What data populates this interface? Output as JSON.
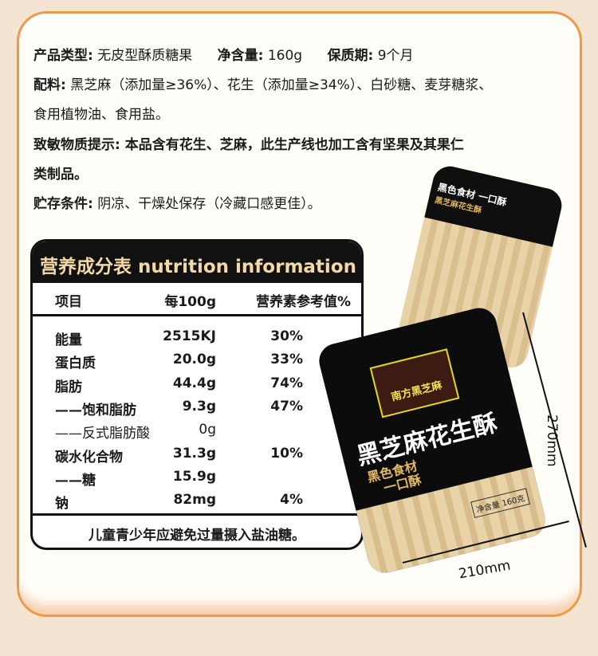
{
  "product_info": {
    "type_label": "产品类型:",
    "type_value": "无皮型酥质糖果",
    "net_label": "净含量:",
    "net_value": "160g",
    "shelf_label": "保质期:",
    "shelf_value": "9个月",
    "ingredients_label": "配料:",
    "ingredients_line1": "黑芝麻（添加量≥36%）、花生（添加量≥34%）、白砂糖、麦芽糖浆、",
    "ingredients_line2": "食用植物油、食用盐。",
    "allergen_label": "致敏物质提示:",
    "allergen_line1": "本品含有花生、芝麻，此生产线也加工含有坚果及其果仁",
    "allergen_line2": "类制品。",
    "storage_label": "贮存条件:",
    "storage_value": "阴凉、干燥处保存（冷藏口感更佳）。"
  },
  "nutrition": {
    "title": "营养成分表 nutrition information",
    "headers": [
      "项目",
      "每100g",
      "营养素参考值%"
    ],
    "rows": [
      {
        "item": "能量",
        "value": "2515KJ",
        "nrv": "30%"
      },
      {
        "item": "蛋白质",
        "value": "20.0g",
        "nrv": "33%"
      },
      {
        "item": "脂肪",
        "value": "44.4g",
        "nrv": "74%"
      },
      {
        "item": "——饱和脂肪",
        "value": "9.3g",
        "nrv": "47%"
      },
      {
        "item": "——反式脂肪酸",
        "value": "0g",
        "nrv": ""
      },
      {
        "item": "碳水化合物",
        "value": "31.3g",
        "nrv": "10%"
      },
      {
        "item": "——糖",
        "value": "15.9g",
        "nrv": ""
      },
      {
        "item": "钠",
        "value": "82mg",
        "nrv": "4%"
      }
    ],
    "footer": "儿童青少年应避免过量摄入盐油糖。"
  },
  "package": {
    "back_slogan": "黑色食材 一口酥",
    "back_tag": "黑芝麻花生酥",
    "brand": "南方黑芝麻",
    "product_name": "黑芝麻花生酥",
    "slogan_line1": "黑色食材",
    "slogan_line2": "一口酥",
    "net": "净含量 160克"
  },
  "dimensions": {
    "height": "270mm",
    "width": "210mm"
  }
}
